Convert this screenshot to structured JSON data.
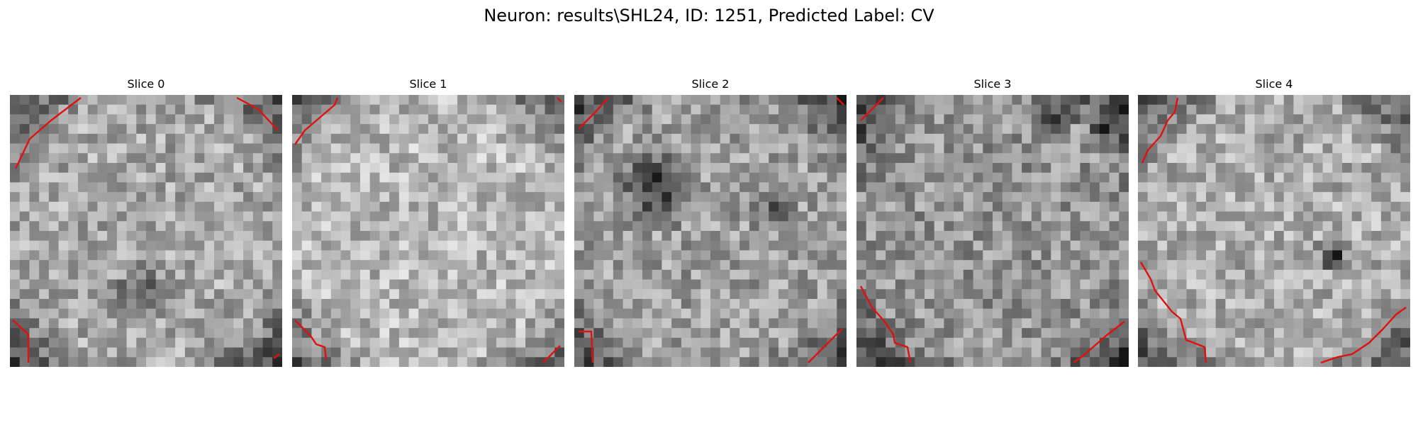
{
  "figure": {
    "title": "Neuron: results\\SHL24, ID: 1251, Predicted Label: CV"
  },
  "colors": {
    "contour": "#e01010",
    "colormap": "grayscale"
  },
  "panels": [
    {
      "title": "Slice 0",
      "mean_intensity": 0.66,
      "spot_count": 1
    },
    {
      "title": "Slice 1",
      "mean_intensity": 0.72,
      "spot_count": 0
    },
    {
      "title": "Slice 2",
      "mean_intensity": 0.62,
      "spot_count": 2
    },
    {
      "title": "Slice 3",
      "mean_intensity": 0.58,
      "spot_count": 2
    },
    {
      "title": "Slice 4",
      "mean_intensity": 0.68,
      "spot_count": 1
    }
  ]
}
